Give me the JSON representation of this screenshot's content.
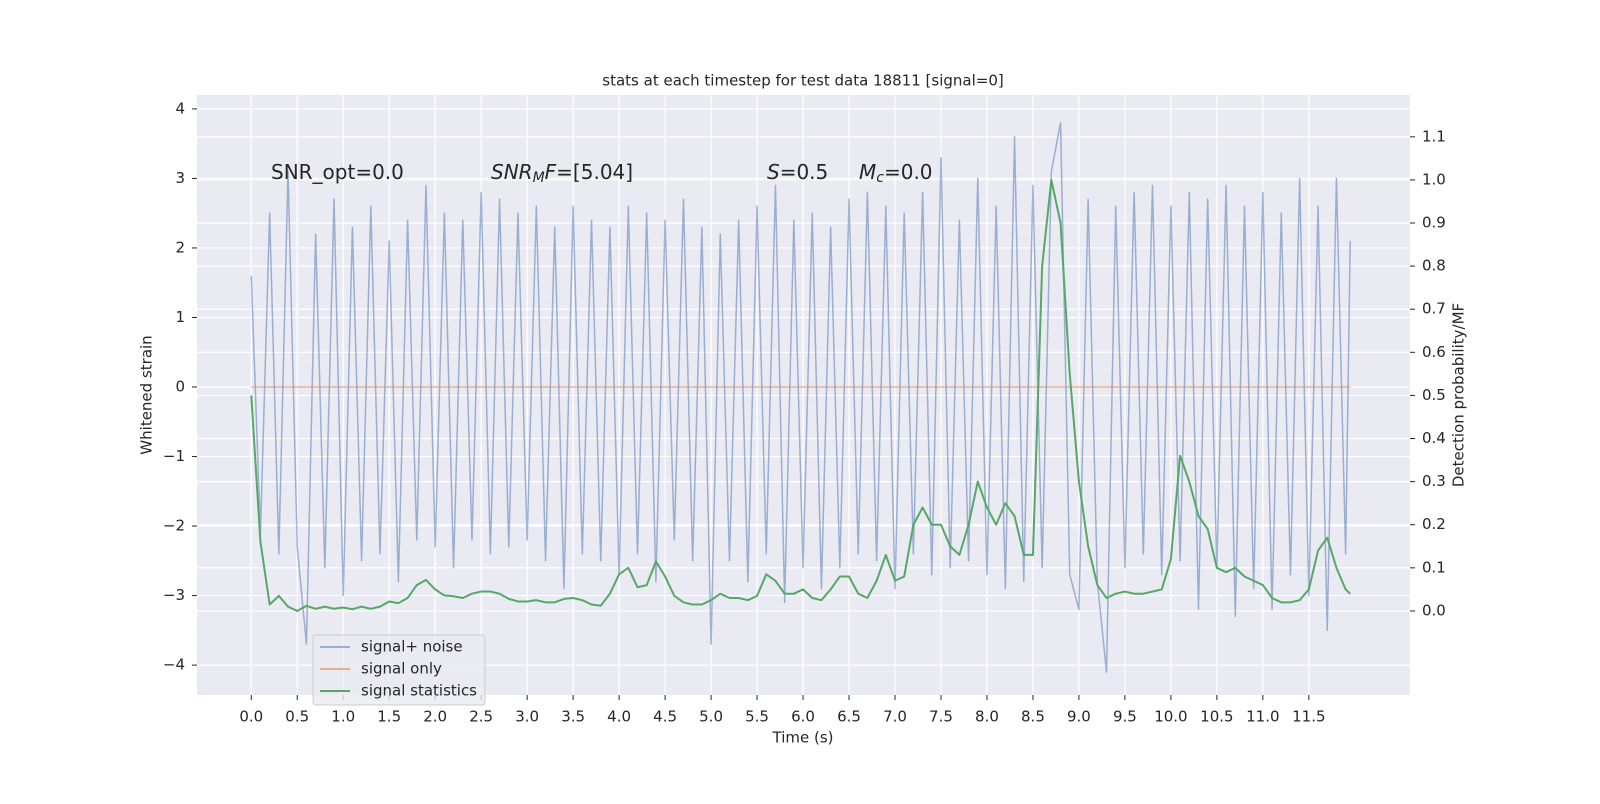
{
  "chart_data": {
    "type": "line",
    "title": "stats at each timestep for test data 18811 [signal=0]",
    "xlabel": "Time (s)",
    "ylabel": "Whitened strain",
    "y2label": "Detection probability/MF",
    "grid": true,
    "legend": "lower left",
    "annotations": [
      [
        {
          "t": "SNR_opt=0.0",
          "italic": false,
          "sub": false
        }
      ],
      [
        {
          "t": "SNR",
          "italic": true,
          "sub": false
        },
        {
          "t": "M",
          "italic": true,
          "sub": true
        },
        {
          "t": "F",
          "italic": true,
          "sub": false
        },
        {
          "t": "=[5.04]",
          "italic": false,
          "sub": false
        }
      ],
      [
        {
          "t": "S",
          "italic": true,
          "sub": false
        },
        {
          "t": "=0.5",
          "italic": false,
          "sub": false
        }
      ],
      [
        {
          "t": "M",
          "italic": true,
          "sub": false
        },
        {
          "t": "c",
          "italic": true,
          "sub": true
        },
        {
          "t": "=0.0",
          "italic": false,
          "sub": false
        }
      ]
    ],
    "xlim": [
      -0.59,
      12.6
    ],
    "ylim": [
      -4.43,
      4.2
    ],
    "y2lim": [
      -0.195,
      1.197
    ],
    "xticks": [
      {
        "value": 0,
        "label": "0.0"
      },
      {
        "value": 0.5,
        "label": "0.5"
      },
      {
        "value": 1,
        "label": "1.0"
      },
      {
        "value": 1.5,
        "label": "1.5"
      },
      {
        "value": 2,
        "label": "2.0"
      },
      {
        "value": 2.5,
        "label": "2.5"
      },
      {
        "value": 3,
        "label": "3.0"
      },
      {
        "value": 3.5,
        "label": "3.5"
      },
      {
        "value": 4,
        "label": "4.0"
      },
      {
        "value": 4.5,
        "label": "4.5"
      },
      {
        "value": 5,
        "label": "5.0"
      },
      {
        "value": 5.5,
        "label": "5.5"
      },
      {
        "value": 6,
        "label": "6.0"
      },
      {
        "value": 6.5,
        "label": "6.5"
      },
      {
        "value": 7,
        "label": "7.0"
      },
      {
        "value": 7.5,
        "label": "7.5"
      },
      {
        "value": 8,
        "label": "8.0"
      },
      {
        "value": 8.5,
        "label": "8.5"
      },
      {
        "value": 9,
        "label": "9.0"
      },
      {
        "value": 9.5,
        "label": "9.5"
      },
      {
        "value": 10,
        "label": "10.0"
      },
      {
        "value": 10.5,
        "label": "10.5"
      },
      {
        "value": 11,
        "label": "11.0"
      },
      {
        "value": 11.5,
        "label": "11.5"
      }
    ],
    "yticks": [
      {
        "value": -4,
        "label": "−4"
      },
      {
        "value": -3,
        "label": "−3"
      },
      {
        "value": -2,
        "label": "−2"
      },
      {
        "value": -1,
        "label": "−1"
      },
      0,
      1,
      2,
      3,
      4
    ],
    "y2ticks": [
      {
        "value": 0,
        "label": "0.0"
      },
      {
        "value": 0.1,
        "label": "0.1"
      },
      {
        "value": 0.2,
        "label": "0.2"
      },
      {
        "value": 0.3,
        "label": "0.3"
      },
      {
        "value": 0.4,
        "label": "0.4"
      },
      {
        "value": 0.5,
        "label": "0.5"
      },
      {
        "value": 0.6,
        "label": "0.6"
      },
      {
        "value": 0.7,
        "label": "0.7"
      },
      {
        "value": 0.8,
        "label": "0.8"
      },
      {
        "value": 0.9,
        "label": "0.9"
      },
      {
        "value": 1,
        "label": "1.0"
      },
      {
        "value": 1.1,
        "label": "1.1"
      }
    ],
    "x": [
      0,
      0.1,
      0.2,
      0.3,
      0.4,
      0.5,
      0.6,
      0.7,
      0.8,
      0.9,
      1,
      1.1,
      1.2,
      1.3,
      1.4,
      1.5,
      1.6,
      1.7,
      1.8,
      1.9,
      2,
      2.1,
      2.2,
      2.3,
      2.4,
      2.5,
      2.6,
      2.7,
      2.8,
      2.9,
      3,
      3.1,
      3.2,
      3.3,
      3.4,
      3.5,
      3.6,
      3.7,
      3.8,
      3.9,
      4,
      4.1,
      4.2,
      4.3,
      4.4,
      4.5,
      4.6,
      4.7,
      4.8,
      4.9,
      5,
      5.1,
      5.2,
      5.3,
      5.4,
      5.5,
      5.6,
      5.7,
      5.8,
      5.9,
      6,
      6.1,
      6.2,
      6.3,
      6.4,
      6.5,
      6.6,
      6.7,
      6.8,
      6.9,
      7,
      7.1,
      7.2,
      7.3,
      7.4,
      7.5,
      7.6,
      7.7,
      7.8,
      7.9,
      8,
      8.1,
      8.2,
      8.3,
      8.4,
      8.5,
      8.6,
      8.7,
      8.8,
      8.9,
      9,
      9.1,
      9.2,
      9.3,
      9.4,
      9.5,
      9.6,
      9.7,
      9.8,
      9.9,
      10,
      10.1,
      10.2,
      10.3,
      10.4,
      10.5,
      10.6,
      10.7,
      10.8,
      10.9,
      11,
      11.1,
      11.2,
      11.3,
      11.4,
      11.5,
      11.6,
      11.7,
      11.8,
      11.9,
      11.95
    ],
    "series": [
      {
        "name": "signal+ noise",
        "color": "#4c72b0",
        "opacity": 0.5,
        "axis": "y",
        "values": [
          1.6,
          -2.1,
          2.5,
          -2.4,
          3.1,
          -2.3,
          -3.7,
          2.2,
          -2.6,
          2.7,
          -3.0,
          2.3,
          -2.5,
          2.6,
          -2.4,
          2.1,
          -2.8,
          2.4,
          -2.2,
          2.9,
          -2.3,
          2.5,
          -2.6,
          2.4,
          -2.2,
          2.8,
          -2.4,
          2.7,
          -2.3,
          2.5,
          -2.2,
          2.6,
          -2.5,
          2.3,
          -2.9,
          2.6,
          -2.4,
          2.4,
          -2.5,
          2.3,
          -2.7,
          2.6,
          -2.4,
          2.5,
          -2.8,
          2.4,
          -2.2,
          2.7,
          -2.5,
          2.3,
          -3.7,
          2.2,
          -2.5,
          2.4,
          -2.8,
          2.6,
          -2.4,
          2.9,
          -3.1,
          2.4,
          -2.6,
          2.5,
          -2.9,
          2.3,
          -2.6,
          2.7,
          -2.4,
          2.8,
          -2.5,
          2.6,
          -2.9,
          2.5,
          -2.4,
          2.8,
          -2.7,
          3.3,
          -2.6,
          2.4,
          -2.5,
          3.0,
          -2.7,
          2.6,
          -2.9,
          3.6,
          -2.8,
          2.9,
          -2.6,
          3.1,
          3.8,
          -2.7,
          -3.2,
          2.7,
          -2.8,
          -4.1,
          2.6,
          -2.6,
          2.8,
          -2.4,
          2.9,
          -2.7,
          2.6,
          -2.5,
          2.8,
          -3.2,
          2.7,
          -2.6,
          2.9,
          -3.3,
          2.6,
          -2.9,
          2.8,
          -3.2,
          2.5,
          -2.7,
          3.0,
          -3.0,
          2.6,
          -3.5,
          3.0,
          -2.4,
          2.1
        ]
      },
      {
        "name": "signal only",
        "color": "#dd8452",
        "opacity": 0.6,
        "axis": "y",
        "values": [
          0,
          0,
          0,
          0,
          0,
          0,
          0,
          0,
          0,
          0,
          0,
          0,
          0,
          0,
          0,
          0,
          0,
          0,
          0,
          0,
          0,
          0,
          0,
          0,
          0,
          0,
          0,
          0,
          0,
          0,
          0,
          0,
          0,
          0,
          0,
          0,
          0,
          0,
          0,
          0,
          0,
          0,
          0,
          0,
          0,
          0,
          0,
          0,
          0,
          0,
          0,
          0,
          0,
          0,
          0,
          0,
          0,
          0,
          0,
          0,
          0,
          0,
          0,
          0,
          0,
          0,
          0,
          0,
          0,
          0,
          0,
          0,
          0,
          0,
          0,
          0,
          0,
          0,
          0,
          0,
          0,
          0,
          0,
          0,
          0,
          0,
          0,
          0,
          0,
          0,
          0,
          0,
          0,
          0,
          0,
          0,
          0,
          0,
          0,
          0,
          0,
          0,
          0,
          0,
          0,
          0,
          0,
          0,
          0,
          0,
          0,
          0,
          0,
          0,
          0,
          0,
          0,
          0,
          0,
          0,
          0
        ]
      },
      {
        "name": "signal statistics",
        "color": "#55a868",
        "opacity": 1,
        "axis": "y2",
        "values": [
          0.5,
          0.16,
          0.015,
          0.035,
          0.01,
          0,
          0.012,
          0.005,
          0.01,
          0.005,
          0.008,
          0.004,
          0.01,
          0.005,
          0.01,
          0.022,
          0.018,
          0.03,
          0.06,
          0.072,
          0.05,
          0.036,
          0.034,
          0.03,
          0.04,
          0.045,
          0.045,
          0.04,
          0.028,
          0.022,
          0.022,
          0.025,
          0.02,
          0.02,
          0.028,
          0.03,
          0.025,
          0.015,
          0.012,
          0.04,
          0.085,
          0.1,
          0.055,
          0.06,
          0.115,
          0.08,
          0.035,
          0.02,
          0.015,
          0.015,
          0.025,
          0.04,
          0.03,
          0.03,
          0.025,
          0.035,
          0.085,
          0.07,
          0.04,
          0.04,
          0.05,
          0.03,
          0.025,
          0.05,
          0.08,
          0.08,
          0.04,
          0.03,
          0.07,
          0.13,
          0.07,
          0.08,
          0.2,
          0.24,
          0.2,
          0.2,
          0.15,
          0.13,
          0.2,
          0.3,
          0.24,
          0.2,
          0.25,
          0.22,
          0.13,
          0.13,
          0.8,
          1.0,
          0.9,
          0.55,
          0.3,
          0.15,
          0.06,
          0.03,
          0.04,
          0.045,
          0.04,
          0.04,
          0.045,
          0.05,
          0.12,
          0.36,
          0.3,
          0.22,
          0.19,
          0.1,
          0.09,
          0.1,
          0.08,
          0.07,
          0.06,
          0.03,
          0.02,
          0.02,
          0.025,
          0.05,
          0.14,
          0.17,
          0.1,
          0.05,
          0.04
        ]
      }
    ]
  }
}
